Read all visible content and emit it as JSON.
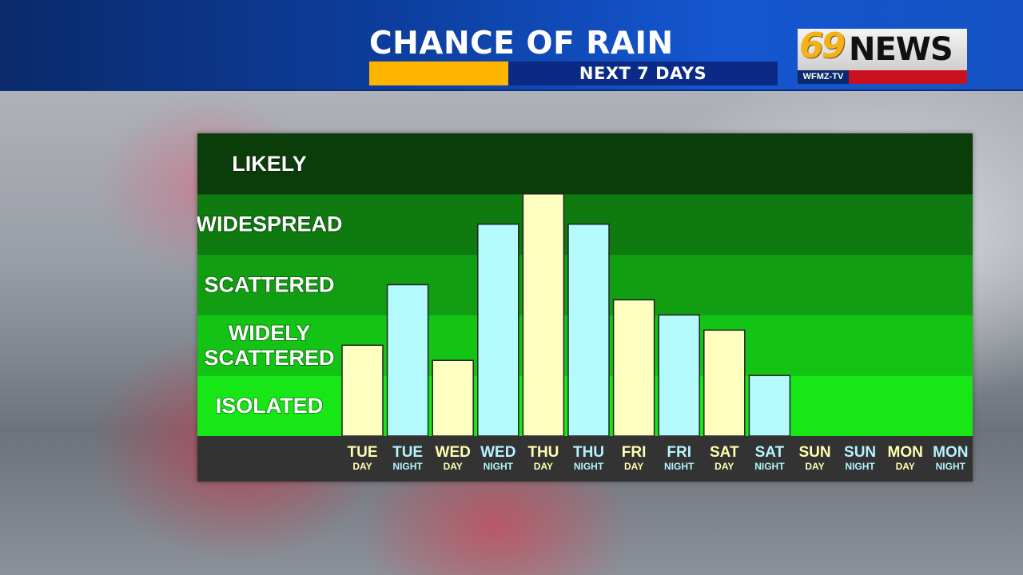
{
  "header": {
    "title": "CHANCE OF RAIN",
    "subtitle": "NEXT 7 DAYS",
    "accent_color": "#ffb400"
  },
  "logo": {
    "number": "69",
    "word": "NEWS",
    "callsign": "WFMZ-TV"
  },
  "chart_data": {
    "type": "bar",
    "y_levels": [
      "ISOLATED",
      "WIDELY SCATTERED",
      "SCATTERED",
      "WIDESPREAD",
      "LIKELY"
    ],
    "ylim": [
      0,
      5
    ],
    "categories": [
      {
        "day": "TUE",
        "period": "DAY"
      },
      {
        "day": "TUE",
        "period": "NIGHT"
      },
      {
        "day": "WED",
        "period": "DAY"
      },
      {
        "day": "WED",
        "period": "NIGHT"
      },
      {
        "day": "THU",
        "period": "DAY"
      },
      {
        "day": "THU",
        "period": "NIGHT"
      },
      {
        "day": "FRI",
        "period": "DAY"
      },
      {
        "day": "FRI",
        "period": "NIGHT"
      },
      {
        "day": "SAT",
        "period": "DAY"
      },
      {
        "day": "SAT",
        "period": "NIGHT"
      },
      {
        "day": "SUN",
        "period": "DAY"
      },
      {
        "day": "SUN",
        "period": "NIGHT"
      },
      {
        "day": "MON",
        "period": "DAY"
      },
      {
        "day": "MON",
        "period": "NIGHT"
      }
    ],
    "values": [
      1.5,
      2.5,
      1.25,
      3.5,
      4.0,
      3.5,
      2.25,
      2.0,
      1.75,
      1.0,
      0,
      0,
      0,
      0
    ],
    "colors": {
      "day_bar": "#ffffc0",
      "night_bar": "#b4faff",
      "day_label": "#ffffb0",
      "night_label": "#b4f4ff",
      "bands": [
        "#17e617",
        "#14c414",
        "#129e12",
        "#0f7a0f",
        "#0b3d0b"
      ],
      "axis_strip": "#333333"
    }
  }
}
